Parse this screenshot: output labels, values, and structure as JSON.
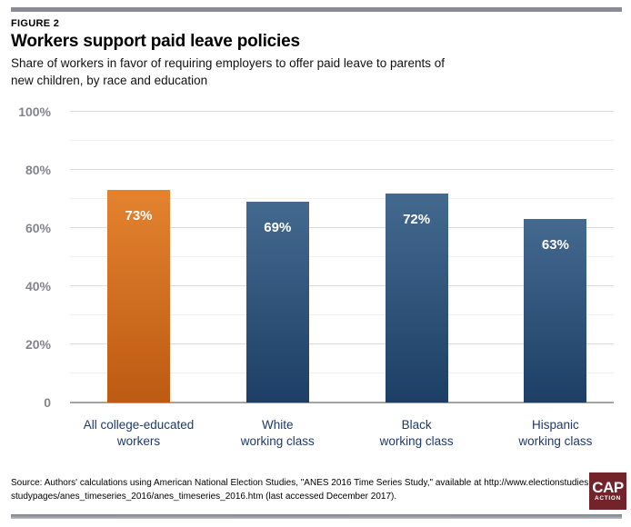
{
  "figure_label": "FIGURE 2",
  "title": "Workers support paid leave policies",
  "subtitle": "Share of workers in favor of requiring employers to offer paid leave to parents of\nnew children, by race and education",
  "chart_data": {
    "type": "bar",
    "title": "Workers support paid leave policies",
    "subtitle": "Share of workers in favor of requiring employers to offer paid leave to parents of new children, by race and education",
    "categories": [
      "All college-educated workers",
      "White working class",
      "Black working class",
      "Hispanic working class"
    ],
    "category_label_lines": [
      "All college-educated\nworkers",
      "White\nworking class",
      "Black\nworking class",
      "Hispanic\nworking class"
    ],
    "values": [
      73,
      69,
      72,
      63
    ],
    "value_labels": [
      "73%",
      "69%",
      "72%",
      "63%"
    ],
    "xlabel": "",
    "ylabel": "",
    "ylim": [
      0,
      100
    ],
    "y_ticks": [
      {
        "value": 100,
        "label": "100%"
      },
      {
        "value": 80,
        "label": "80%"
      },
      {
        "value": 60,
        "label": "60%"
      },
      {
        "value": 40,
        "label": "40%"
      },
      {
        "value": 20,
        "label": "20%"
      },
      {
        "value": 0,
        "label": "0"
      }
    ],
    "gridlines": {
      "interval": 10,
      "labeled_interval": 20,
      "visible": true
    },
    "legend": "none",
    "highlight_index": 0,
    "bar_colors": {
      "highlight": {
        "top": "#e3832f",
        "bottom": "#bd5a13"
      },
      "default": {
        "top": "#44698f",
        "bottom": "#1d3f66"
      }
    }
  },
  "source_note": "Source: Authors' calculations using American National Election Studies, \"ANES 2016 Time Series Study,\" available at http://www.electionstudies.org/-\nstudypages/anes_timeseries_2016/anes_timeseries_2016.htm (last accessed December 2017).",
  "logo": {
    "line1": "CAP",
    "line2": "ACTION",
    "background": "#73232a"
  },
  "colors": {
    "top_rule": "#8b8b93",
    "bottom_rule": "#9a9aa2",
    "axis_label": "#84848e",
    "category_label": "#1f3a68",
    "zero_line": "#a3a3a3",
    "value_label": "#ffffff"
  }
}
